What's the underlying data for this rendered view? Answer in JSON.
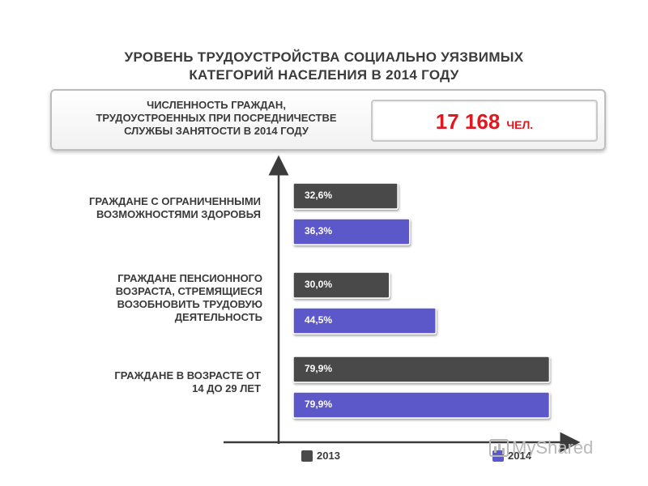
{
  "title": {
    "line1": "УРОВЕНЬ ТРУДОУСТРОЙСТВА СОЦИАЛЬНО УЯЗВИМЫХ",
    "line2": "КАТЕГОРИЙ НАСЕЛЕНИЯ В 2014 ГОДУ"
  },
  "info": {
    "line1": "ЧИСЛЕННОСТЬ ГРАЖДАН,",
    "line2": "ТРУДОУСТРОЕННЫХ ПРИ ПОСРЕДНИЧЕСТВЕ",
    "line3": "СЛУЖБЫ ЗАНЯТОСТИ В 2014 ГОДУ",
    "count": "17 168",
    "unit": "ЧЕЛ."
  },
  "categories": [
    {
      "lines": [
        "ГРАЖДАНЕ С ОГРАНИЧЕННЫМИ",
        "ВОЗМОЖНОСТЯМИ ЗДОРОВЬЯ"
      ]
    },
    {
      "lines": [
        "ГРАЖДАНЕ ПЕНСИОННОГО",
        "ВОЗРАСТА, СТРЕМЯЩИЕСЯ",
        "ВОЗОБНОВИТЬ ТРУДОВУЮ",
        "ДЕЯТЕЛЬНОСТЬ"
      ]
    },
    {
      "lines": [
        "ГРАЖДАНЕ В ВОЗРАСТЕ ОТ",
        "14 ДО 29 ЛЕТ"
      ]
    }
  ],
  "legend": [
    {
      "label": "2013",
      "color": "#4a4a4a"
    },
    {
      "label": "2014",
      "color": "#5b58c9"
    }
  ],
  "watermark": {
    "text": "MyShared",
    "icon": "presentation-chart-icon"
  },
  "chart_data": {
    "type": "bar",
    "orientation": "horizontal",
    "title": "УРОВЕНЬ ТРУДОУСТРОЙСТВА СОЦИАЛЬНО УЯЗВИМЫХ КАТЕГОРИЙ НАСЕЛЕНИЯ В 2014 ГОДУ",
    "categories": [
      "ГРАЖДАНЕ С ОГРАНИЧЕННЫМИ ВОЗМОЖНОСТЯМИ ЗДОРОВЬЯ",
      "ГРАЖДАНЕ ПЕНСИОННОГО ВОЗРАСТА, СТРЕМЯЩИЕСЯ ВОЗОБНОВИТЬ ТРУДОВУЮ ДЕЯТЕЛЬНОСТЬ",
      "ГРАЖДАНЕ В ВОЗРАСТЕ ОТ 14 ДО 29 ЛЕТ"
    ],
    "series": [
      {
        "name": "2013",
        "values": [
          32.6,
          30.0,
          79.9
        ],
        "labels": [
          "32,6%",
          "30,0%",
          "79,9%"
        ],
        "color": "#4a4a4a"
      },
      {
        "name": "2014",
        "values": [
          36.3,
          44.5,
          79.9
        ],
        "labels": [
          "36,3%",
          "44,5%",
          "79,9%"
        ],
        "color": "#5b58c9"
      }
    ],
    "xlim": [
      0,
      100
    ],
    "legend": "bottom",
    "grid": false
  }
}
